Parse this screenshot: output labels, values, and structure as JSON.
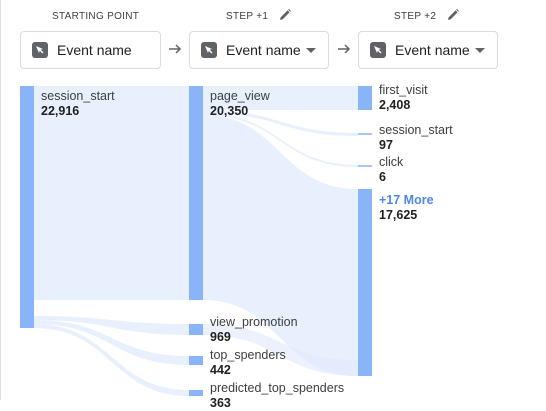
{
  "steps": [
    {
      "header": "STARTING POINT",
      "selector": "Event name"
    },
    {
      "header": "STEP +1",
      "selector": "Event name"
    },
    {
      "header": "STEP +2",
      "selector": "Event name"
    }
  ],
  "icons": {
    "pencil": "pencil-icon",
    "arrow": "arrow-right-icon",
    "event": "cursor-icon",
    "caret": "chevron-down-icon"
  },
  "colors": {
    "node": "#8ab4f8",
    "flow": "#e8f0fe",
    "more": "#4f86e8"
  },
  "columns": {
    "start": [
      {
        "name": "session_start",
        "value": "22,916"
      }
    ],
    "step1": [
      {
        "name": "page_view",
        "value": "20,350"
      },
      {
        "name": "view_promotion",
        "value": "969"
      },
      {
        "name": "top_spenders",
        "value": "442"
      },
      {
        "name": "predicted_top_spenders",
        "value": "363"
      }
    ],
    "step2": [
      {
        "name": "first_visit",
        "value": "2,408"
      },
      {
        "name": "session_start",
        "value": "97"
      },
      {
        "name": "click",
        "value": "6"
      },
      {
        "name": "+17 More",
        "value": "17,625"
      }
    ]
  }
}
